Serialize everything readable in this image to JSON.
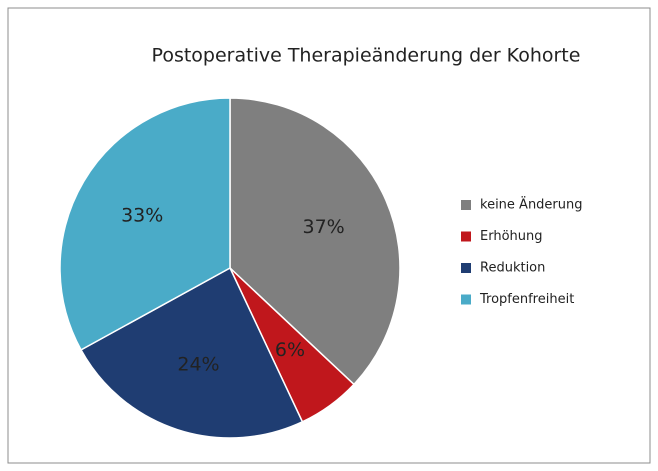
{
  "chart_data": {
    "type": "pie",
    "title": "Postoperative Therapieänderung der Kohorte",
    "categories": [
      "keine Änderung",
      "Erhöhung",
      "Reduktion",
      "Tropfenfreiheit"
    ],
    "values": [
      37,
      6,
      24,
      33
    ],
    "value_labels": [
      "37%",
      "6%",
      "24%",
      "33%"
    ],
    "colors": [
      "#7f7f7f",
      "#c0171c",
      "#1f3d72",
      "#4aabc8"
    ],
    "legend": "right"
  }
}
